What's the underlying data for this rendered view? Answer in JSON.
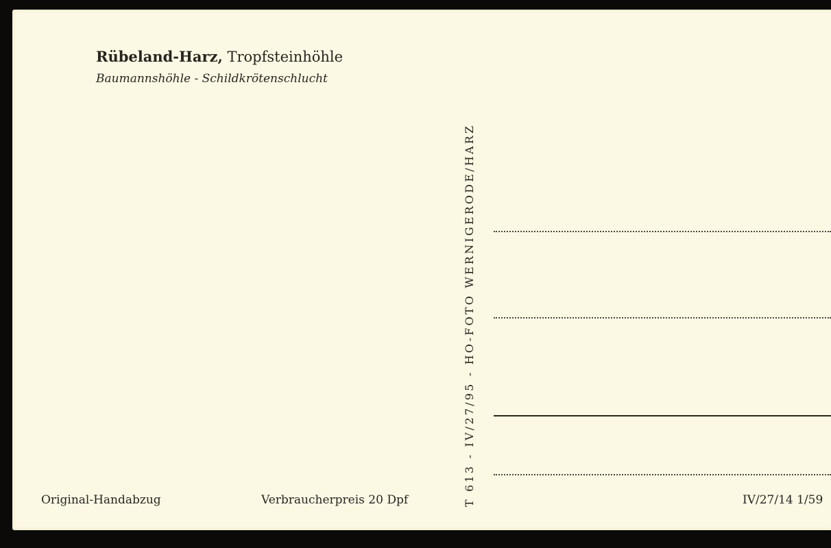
{
  "header": {
    "title_bold": "Rübeland-Harz,",
    "title_rest": "Tropfsteinhöhle",
    "subtitle": "Baumannshöhle - Schildkrötenschlucht"
  },
  "footer": {
    "left": "Original-Handabzug",
    "price": "Verbraucherpreis 20 Dpf",
    "right": "IV/27/14 1/59"
  },
  "publisher_vertical": "T 613 - IV/27/95 - HO-FOTO WERNIGERODE/HARZ",
  "colors": {
    "card": "#fbf8e3",
    "ink": "#2a2420",
    "border": "#0c0a08"
  }
}
